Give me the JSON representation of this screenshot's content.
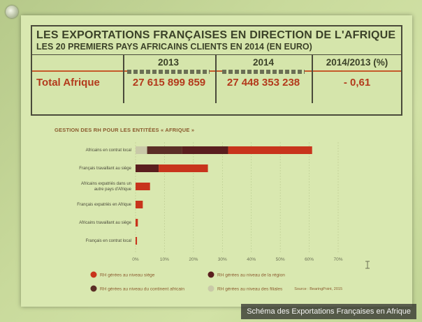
{
  "table": {
    "title": "LES EXPORTATIONS FRANÇAISES EN DIRECTION DE L'AFRIQUE",
    "subtitle": "LES 20 PREMIERS PAYS AFRICAINS CLIENTS EN 2014 (EN EURO)",
    "headers": [
      "2013",
      "2014",
      "2014/2013 (%)"
    ],
    "row_label": "Total Afrique",
    "row_values": [
      "27 615 899 859",
      "27 448 353 238",
      "- 0,61"
    ]
  },
  "chart_data": {
    "type": "bar",
    "title": "GESTION DES RH POUR LES ENTITÉES « AFRIQUE »",
    "categories": [
      "Africains en contrat local",
      "Français travaillant au siège",
      "Africains expatriés dans un autre pays d'Afrique",
      "Français expatriés en Afrique",
      "Africains travaillant au siège",
      "Français en contrat local"
    ],
    "series": [
      {
        "name": "RH gérées au niveau des filiales",
        "color": "#c9c9a8",
        "values": [
          4,
          0,
          0,
          0,
          0,
          0
        ]
      },
      {
        "name": "RH gérées au niveau du continent africain",
        "color": "#5b2e26",
        "values": [
          12,
          0,
          0,
          0,
          0,
          0
        ]
      },
      {
        "name": "RH gérées au niveau de la région",
        "color": "#5a1e1e",
        "values": [
          16,
          8,
          0,
          0,
          0,
          0
        ]
      },
      {
        "name": "RH gérées au niveau siège",
        "color": "#c8341c",
        "values": [
          29,
          17,
          5,
          2.5,
          0.8,
          0.5
        ]
      }
    ],
    "xticks": [
      "0%",
      "10%",
      "20%",
      "30%",
      "40%",
      "50%",
      "60%",
      "70%"
    ],
    "xlim": [
      0,
      70
    ],
    "legend": [
      {
        "label": "RH gérées au niveau siège",
        "color": "#c8341c"
      },
      {
        "label": "RH gérées au niveau de la région",
        "color": "#5a1e1e"
      },
      {
        "label": "RH gérées au niveau du continent africain",
        "color": "#5b2e26"
      },
      {
        "label": "RH gérées au niveau des filiales",
        "color": "#c9c9a8"
      }
    ],
    "source": "Source : BearingPoint, 2015"
  },
  "caption": "Schéma des Exportations Françaises en Afrique"
}
